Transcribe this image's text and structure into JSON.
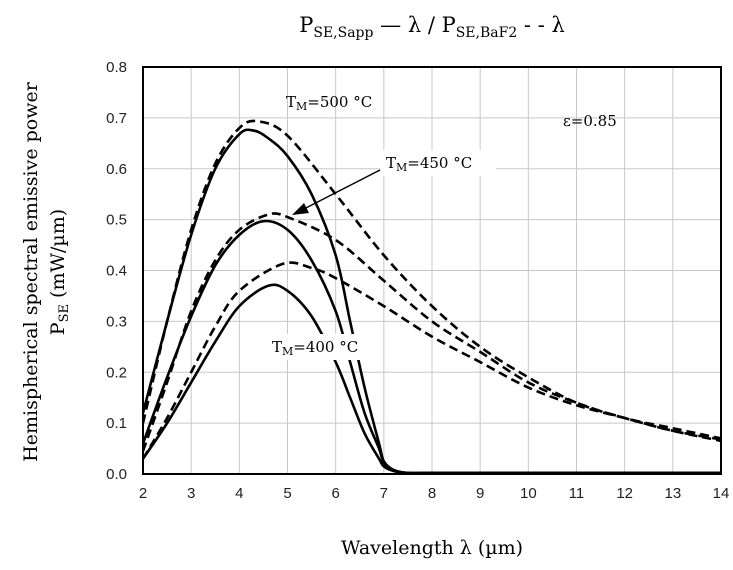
{
  "chart_data": {
    "type": "line",
    "title": "P_SE,Sapp — λ / P_SE,BaF2 - - λ",
    "title_parts": {
      "p1": "P",
      "sub1": "SE,Sapp",
      "mid": " — λ / ",
      "p2": "P",
      "sub2": "SE,BaF2",
      "tail": " - - λ"
    },
    "xlabel": "Wavelength λ (µm)",
    "ylabel": "Hemispherical spectral emissive power P_SE (mW/µm)",
    "ylabel_parts": {
      "line1": "Hemispherical spectral emissive power",
      "p": "P",
      "sub": "SE",
      "rest": " (mW/µm)"
    },
    "xlim": [
      2,
      14
    ],
    "ylim": [
      0,
      0.8
    ],
    "xticks": [
      "2",
      "3",
      "4",
      "5",
      "6",
      "7",
      "8",
      "9",
      "10",
      "11",
      "12",
      "13",
      "14"
    ],
    "yticks": [
      "0.0",
      "0.1",
      "0.2",
      "0.3",
      "0.4",
      "0.5",
      "0.6",
      "0.7",
      "0.8"
    ],
    "grid": true,
    "annotations": {
      "t500": {
        "T": "T",
        "sub": "M",
        "rest": "=500 °C"
      },
      "t450": {
        "T": "T",
        "sub": "M",
        "rest": "=450 °C"
      },
      "t400": {
        "T": "T",
        "sub": "M",
        "rest": "=400 °C"
      },
      "eps": "ε=0.85"
    },
    "series": [
      {
        "style": "solid",
        "color": "#000000",
        "x": [
          2,
          2.5,
          3,
          3.5,
          4,
          4.3,
          4.6,
          5,
          5.5,
          6,
          6.3,
          6.6,
          6.9,
          7.0,
          7.2,
          7.5,
          8,
          10,
          14
        ],
        "y": [
          0.12,
          0.3,
          0.47,
          0.6,
          0.668,
          0.675,
          0.66,
          0.625,
          0.55,
          0.43,
          0.3,
          0.17,
          0.06,
          0.025,
          0.008,
          0.002,
          0.002,
          0.002,
          0.002
        ]
      },
      {
        "style": "solid",
        "color": "#000000",
        "x": [
          2,
          2.5,
          3,
          3.5,
          4,
          4.5,
          5,
          5.5,
          6,
          6.3,
          6.6,
          6.9,
          7.0,
          7.2,
          7.5,
          8,
          14
        ],
        "y": [
          0.06,
          0.19,
          0.31,
          0.41,
          0.47,
          0.497,
          0.48,
          0.42,
          0.32,
          0.22,
          0.12,
          0.05,
          0.022,
          0.008,
          0.002,
          0.002,
          0.002
        ]
      },
      {
        "style": "solid",
        "color": "#000000",
        "x": [
          2,
          2.5,
          3,
          3.5,
          4,
          4.6,
          5,
          5.5,
          6,
          6.3,
          6.6,
          6.9,
          7.0,
          7.2,
          7.5,
          8,
          14
        ],
        "y": [
          0.03,
          0.1,
          0.18,
          0.26,
          0.33,
          0.37,
          0.36,
          0.31,
          0.22,
          0.15,
          0.08,
          0.03,
          0.015,
          0.006,
          0.002,
          0.002,
          0.002
        ]
      },
      {
        "style": "dashed",
        "color": "#000000",
        "x": [
          2,
          2.5,
          3,
          3.5,
          4,
          4.4,
          5,
          6,
          7,
          8,
          9,
          10,
          11,
          12,
          13,
          14
        ],
        "y": [
          0.1,
          0.3,
          0.48,
          0.61,
          0.68,
          0.693,
          0.665,
          0.55,
          0.43,
          0.33,
          0.25,
          0.19,
          0.14,
          0.11,
          0.085,
          0.065
        ]
      },
      {
        "style": "dashed",
        "color": "#000000",
        "x": [
          2,
          2.5,
          3,
          3.5,
          4,
          4.6,
          5,
          6,
          7,
          8,
          9,
          10,
          11,
          12,
          13,
          14
        ],
        "y": [
          0.045,
          0.18,
          0.32,
          0.42,
          0.48,
          0.51,
          0.505,
          0.46,
          0.38,
          0.3,
          0.24,
          0.18,
          0.14,
          0.11,
          0.09,
          0.07
        ]
      },
      {
        "style": "dashed",
        "color": "#000000",
        "x": [
          2,
          2.5,
          3,
          3.5,
          4,
          4.9,
          5.5,
          6,
          7,
          8,
          9,
          10,
          11,
          12,
          13,
          14
        ],
        "y": [
          0.03,
          0.11,
          0.2,
          0.29,
          0.36,
          0.413,
          0.405,
          0.385,
          0.33,
          0.27,
          0.22,
          0.17,
          0.135,
          0.11,
          0.085,
          0.068
        ]
      }
    ]
  }
}
